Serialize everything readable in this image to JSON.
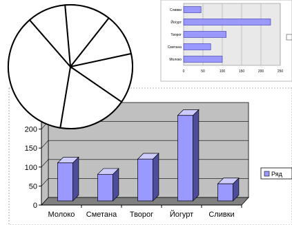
{
  "chart_data": [
    {
      "type": "bar",
      "orientation": "horizontal",
      "categories": [
        "Сливки",
        "Йогурт",
        "Творог",
        "Сметана",
        "Молоко"
      ],
      "values": [
        45,
        225,
        110,
        70,
        100
      ],
      "xlim": [
        0,
        250
      ],
      "x_ticks": [
        "0",
        "50",
        "100",
        "150",
        "200",
        "250"
      ],
      "grid": true,
      "colors": {
        "bar": "#9999ff",
        "bar_stroke": "#3333aa",
        "plot_bg": "#e9e9e9",
        "frame": "#000000"
      }
    },
    {
      "type": "pie",
      "slices": [
        12,
        11,
        13,
        18,
        36,
        10
      ],
      "colors": {
        "fill": "#ffffff",
        "stroke": "#000000"
      }
    },
    {
      "type": "bar",
      "style": "3d",
      "categories": [
        "Молоко",
        "Сметана",
        "Творог",
        "Йогурт",
        "Сливки"
      ],
      "values": [
        100,
        70,
        110,
        225,
        45
      ],
      "ylim": [
        0,
        250
      ],
      "y_ticks": [
        "0",
        "50",
        "100",
        "150",
        "200"
      ],
      "grid": true,
      "legend": {
        "placement": "right",
        "label": "Ряд"
      },
      "colors": {
        "bar_front": "#9999ff",
        "bar_side": "#4d4d99",
        "bar_top": "#ccccff",
        "wall": "#c0c0c0",
        "floor": "#808080",
        "stroke": "#000000"
      }
    }
  ],
  "decor": {
    "pink_shape": "#f2c9c9",
    "green_arrow": "#ccff66"
  }
}
